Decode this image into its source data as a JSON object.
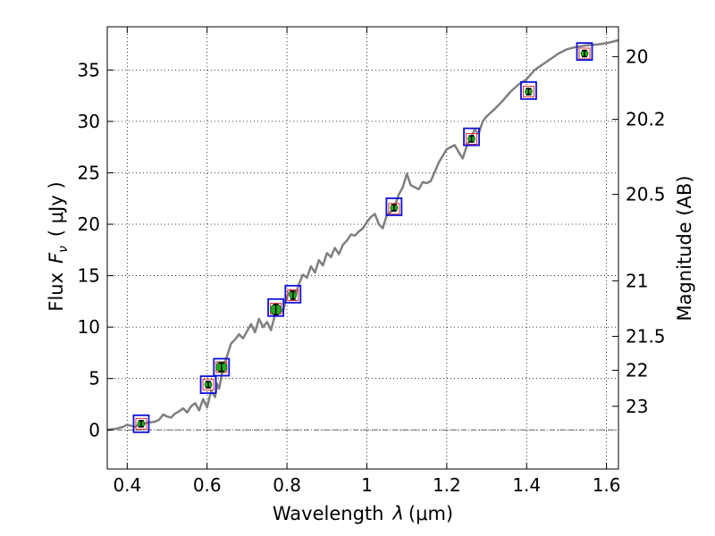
{
  "chart_data": {
    "type": "line",
    "xlabel_main": "Wavelength",
    "xlabel_symbol": "λ",
    "xlabel_unit": "(μm)",
    "ylabel_main": "Flux",
    "ylabel_symbol": "F",
    "ylabel_sub": "ν",
    "ylabel_unit": "( μJy )",
    "y2label": "Magnitude (AB)",
    "xlim": [
      0.35,
      1.63
    ],
    "ylim": [
      -3.8,
      39.2
    ],
    "grid": true,
    "x_ticks": [
      0.4,
      0.6,
      0.8,
      1.0,
      1.2,
      1.4,
      1.6
    ],
    "x_tick_labels": [
      "0.4",
      "0.6",
      "0.8",
      "1",
      "1.2",
      "1.4",
      "1.6"
    ],
    "y_ticks": [
      0,
      5,
      10,
      15,
      20,
      25,
      30,
      35
    ],
    "y_tick_labels": [
      "0",
      "5",
      "10",
      "15",
      "20",
      "25",
      "30",
      "35"
    ],
    "y2_ticks": [
      {
        "label": "20",
        "flux": 36.3
      },
      {
        "label": "20.2",
        "flux": 30.2
      },
      {
        "label": "20.5",
        "flux": 22.9
      },
      {
        "label": "21",
        "flux": 14.5
      },
      {
        "label": "21.5",
        "flux": 9.1
      },
      {
        "label": "22",
        "flux": 5.8
      },
      {
        "label": "23",
        "flux": 2.3
      }
    ],
    "series": [
      {
        "kind": "spectrum",
        "color": "#808080",
        "x": [
          0.35,
          0.37,
          0.39,
          0.4,
          0.41,
          0.42,
          0.43,
          0.45,
          0.47,
          0.48,
          0.49,
          0.5,
          0.51,
          0.52,
          0.53,
          0.54,
          0.55,
          0.56,
          0.57,
          0.58,
          0.59,
          0.6,
          0.61,
          0.62,
          0.625,
          0.63,
          0.64,
          0.65,
          0.66,
          0.67,
          0.68,
          0.69,
          0.7,
          0.71,
          0.72,
          0.73,
          0.74,
          0.75,
          0.76,
          0.77,
          0.78,
          0.79,
          0.8,
          0.81,
          0.82,
          0.83,
          0.84,
          0.85,
          0.86,
          0.87,
          0.88,
          0.89,
          0.9,
          0.91,
          0.92,
          0.93,
          0.94,
          0.95,
          0.96,
          0.97,
          0.98,
          0.99,
          1.0,
          1.01,
          1.02,
          1.03,
          1.04,
          1.05,
          1.06,
          1.07,
          1.08,
          1.09,
          1.1,
          1.11,
          1.12,
          1.13,
          1.14,
          1.15,
          1.16,
          1.18,
          1.2,
          1.22,
          1.23,
          1.24,
          1.25,
          1.26,
          1.27,
          1.28,
          1.29,
          1.3,
          1.32,
          1.34,
          1.36,
          1.38,
          1.4,
          1.42,
          1.45,
          1.48,
          1.5,
          1.52,
          1.55,
          1.58,
          1.6,
          1.63
        ],
        "y": [
          0.0,
          0.1,
          0.3,
          0.5,
          0.4,
          0.3,
          0.5,
          0.7,
          0.8,
          1.0,
          1.5,
          1.3,
          1.2,
          1.6,
          1.8,
          2.1,
          1.7,
          2.3,
          2.6,
          1.9,
          3.0,
          2.2,
          3.8,
          3.2,
          4.5,
          4.0,
          6.0,
          7.2,
          8.4,
          8.8,
          9.3,
          8.9,
          9.6,
          10.3,
          9.5,
          10.8,
          10.0,
          10.5,
          9.7,
          11.2,
          12.1,
          11.5,
          13.0,
          13.6,
          12.9,
          14.2,
          15.1,
          14.8,
          15.9,
          15.3,
          16.5,
          16.0,
          17.2,
          16.8,
          17.7,
          17.1,
          18.0,
          18.4,
          19.0,
          18.9,
          19.3,
          19.6,
          20.2,
          20.7,
          21.0,
          20.0,
          19.6,
          20.9,
          21.2,
          21.8,
          22.9,
          23.6,
          24.9,
          23.8,
          23.6,
          23.4,
          24.1,
          24.0,
          24.2,
          26.0,
          27.3,
          27.7,
          27.0,
          26.4,
          27.6,
          28.4,
          29.2,
          28.8,
          30.0,
          30.5,
          31.2,
          32.0,
          32.9,
          33.6,
          34.1,
          35.0,
          35.8,
          36.6,
          37.0,
          37.2,
          37.4,
          37.5,
          37.6,
          37.9
        ]
      },
      {
        "kind": "model-photometry-red",
        "marker": "square",
        "color": "#e03030",
        "x": [
          0.435,
          0.603,
          0.636,
          0.772,
          0.815,
          1.068,
          1.262,
          1.405,
          1.545
        ],
        "y": [
          0.6,
          4.4,
          6.1,
          11.8,
          13.1,
          21.5,
          28.3,
          32.9,
          36.6
        ]
      },
      {
        "kind": "observed-photometry-green",
        "marker": "circle",
        "color": "#22aa22",
        "x": [
          0.435,
          0.603,
          0.636,
          0.772,
          0.815,
          1.068,
          1.262,
          1.405,
          1.545
        ],
        "y": [
          0.6,
          4.4,
          6.1,
          11.7,
          13.1,
          21.6,
          28.3,
          32.9,
          36.6
        ],
        "err": [
          0.3,
          0.3,
          0.4,
          0.5,
          0.4,
          0.3,
          0.3,
          0.3,
          0.3
        ]
      },
      {
        "kind": "bandpass-boxes-blue",
        "marker": "open-square",
        "color": "#1010dd",
        "x": [
          0.435,
          0.603,
          0.636,
          0.772,
          0.815,
          1.068,
          1.262,
          1.405,
          1.545
        ],
        "y": [
          0.6,
          4.4,
          6.1,
          11.9,
          13.2,
          21.7,
          28.5,
          33.0,
          36.8
        ]
      }
    ]
  }
}
